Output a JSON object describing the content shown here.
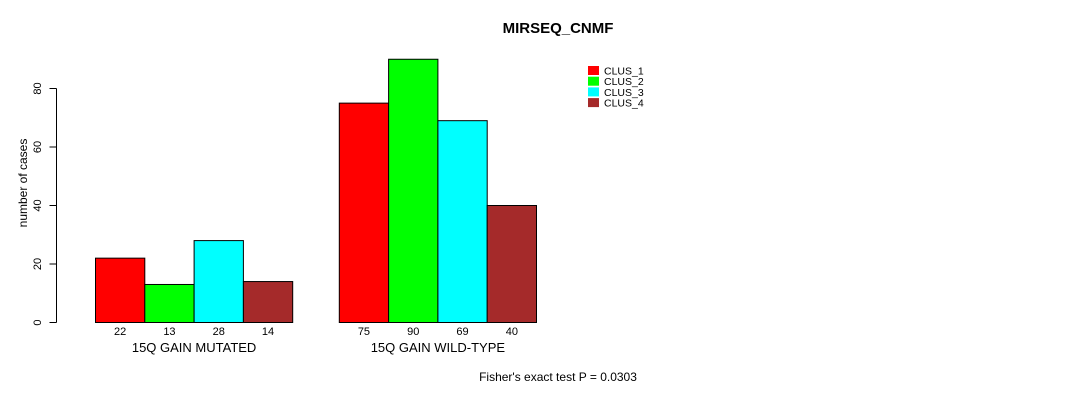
{
  "chart_data": {
    "type": "bar",
    "title": "MIRSEQ_CNMF",
    "ylabel": "number of cases",
    "xlabel": "",
    "ylim": [
      0,
      95
    ],
    "yticks": [
      0,
      20,
      40,
      60,
      80
    ],
    "grid": false,
    "legend_position": "top-right",
    "categories": [
      "15Q GAIN MUTATED",
      "15Q GAIN WILD-TYPE"
    ],
    "series": [
      {
        "name": "CLUS_1",
        "color": "#FF0000",
        "values": [
          22,
          75
        ]
      },
      {
        "name": "CLUS_2",
        "color": "#00FF00",
        "values": [
          13,
          90
        ]
      },
      {
        "name": "CLUS_3",
        "color": "#00FFFF",
        "values": [
          28,
          69
        ]
      },
      {
        "name": "CLUS_4",
        "color": "#A52A2A",
        "values": [
          14,
          40
        ]
      }
    ],
    "bar_value_labels": true,
    "annotation": "Fisher's exact test P = 0.0303"
  },
  "colors": {
    "background": "#FFFFFF",
    "axis": "#000000",
    "text": "#000000"
  }
}
